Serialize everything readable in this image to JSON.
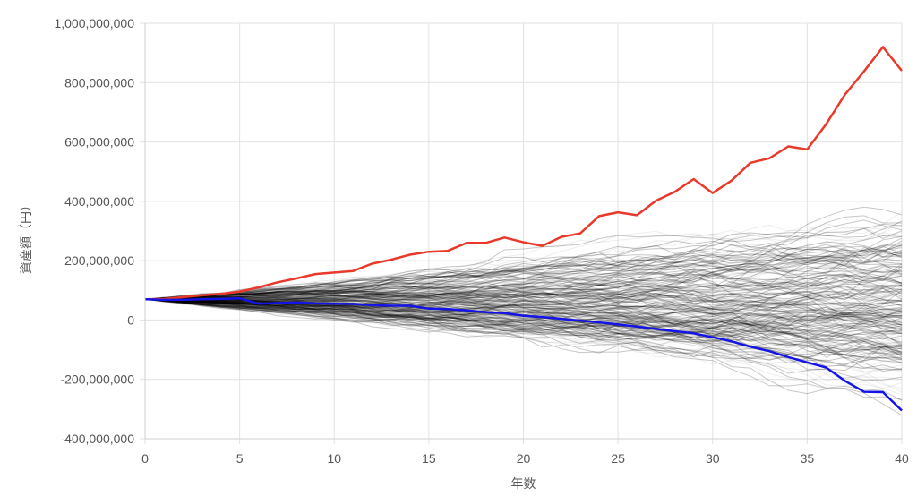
{
  "chart_data": {
    "type": "line",
    "xlabel": "年数",
    "ylabel": "資産額（円）",
    "xlim": [
      0,
      40
    ],
    "ylim": [
      -400000000,
      1000000000
    ],
    "x_ticks": [
      0,
      5,
      10,
      15,
      20,
      25,
      30,
      35,
      40
    ],
    "x_tick_labels": [
      "0",
      "5",
      "10",
      "15",
      "20",
      "25",
      "30",
      "35",
      "40"
    ],
    "y_ticks": [
      -400000000,
      -200000000,
      0,
      200000000,
      400000000,
      600000000,
      800000000,
      1000000000
    ],
    "y_tick_labels": [
      "-400,000,000",
      "-200,000,000",
      "0",
      "200,000,000",
      "400,000,000",
      "600,000,000",
      "800,000,000",
      "1,000,000,000"
    ],
    "grid": true,
    "legend": "none",
    "colors": {
      "max_series": "#e8392a",
      "min_series": "#1414e6",
      "simulation_paths": "#000000",
      "grid": "#e2e2e2"
    },
    "x": [
      0,
      1,
      2,
      3,
      4,
      5,
      6,
      7,
      8,
      9,
      10,
      11,
      12,
      13,
      14,
      15,
      16,
      17,
      18,
      19,
      20,
      21,
      22,
      23,
      24,
      25,
      26,
      27,
      28,
      29,
      30,
      31,
      32,
      33,
      34,
      35,
      36,
      37,
      38,
      39,
      40
    ],
    "series": [
      {
        "role": "max",
        "values": [
          70000000,
          71000000,
          77000000,
          83000000,
          88000000,
          96000000,
          110000000,
          127000000,
          140000000,
          155000000,
          160000000,
          165000000,
          190000000,
          203000000,
          220000000,
          230000000,
          233000000,
          260000000,
          260000000,
          278000000,
          262000000,
          250000000,
          280000000,
          292000000,
          350000000,
          363000000,
          353000000,
          402000000,
          432000000,
          475000000,
          428000000,
          470000000,
          530000000,
          545000000,
          585000000,
          575000000,
          660000000,
          760000000,
          838000000,
          920000000,
          840000000
        ]
      },
      {
        "role": "min",
        "values": [
          70000000,
          68000000,
          68000000,
          70000000,
          71000000,
          73000000,
          55000000,
          57000000,
          59000000,
          56000000,
          55000000,
          54000000,
          50000000,
          48000000,
          48000000,
          38000000,
          37000000,
          32000000,
          26000000,
          23000000,
          14000000,
          10000000,
          4000000,
          -2000000,
          -8000000,
          -15000000,
          -22000000,
          -30000000,
          -38000000,
          -45000000,
          -58000000,
          -72000000,
          -90000000,
          -105000000,
          -125000000,
          -143000000,
          -160000000,
          -205000000,
          -242000000,
          -243000000,
          -305000000
        ]
      }
    ],
    "simulation": {
      "path_count": 220,
      "start_value": 70000000
    }
  }
}
